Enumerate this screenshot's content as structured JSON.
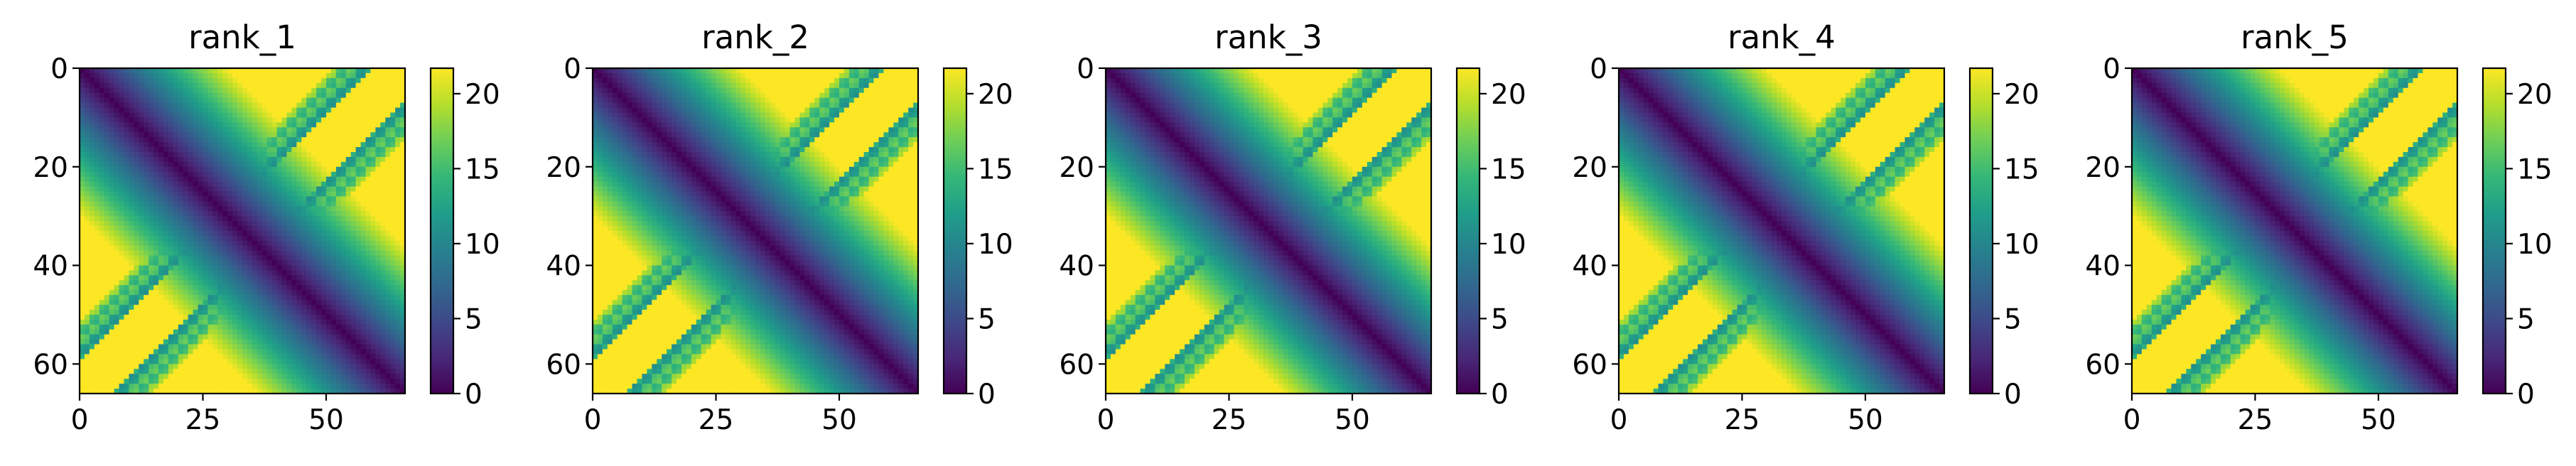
{
  "chart_data": {
    "type": "heatmap",
    "matrix_size": 66,
    "xticks": [
      0,
      25,
      50
    ],
    "yticks": [
      0,
      20,
      40,
      60
    ],
    "colorbar": {
      "ticks": [
        0,
        5,
        10,
        15,
        20
      ],
      "range": [
        0,
        21.7
      ],
      "colormap": "viridis"
    },
    "x_range": [
      0,
      66
    ],
    "y_range": [
      66,
      0
    ],
    "panels": [
      {
        "title": "rank_1"
      },
      {
        "title": "rank_2"
      },
      {
        "title": "rank_3"
      },
      {
        "title": "rank_4"
      },
      {
        "title": "rank_5"
      }
    ],
    "structure": "distance-like map: value 0 on the main diagonal rising with |i-j|, a second low-value band along the anti-diagonal (X shape) with checkered texture, saturated (~21.7) elsewhere"
  },
  "colors": {
    "viridis": [
      "#440154",
      "#482878",
      "#3e4989",
      "#31688e",
      "#26828e",
      "#1f9e89",
      "#35b779",
      "#6ece58",
      "#b5de2b",
      "#fde725"
    ]
  }
}
